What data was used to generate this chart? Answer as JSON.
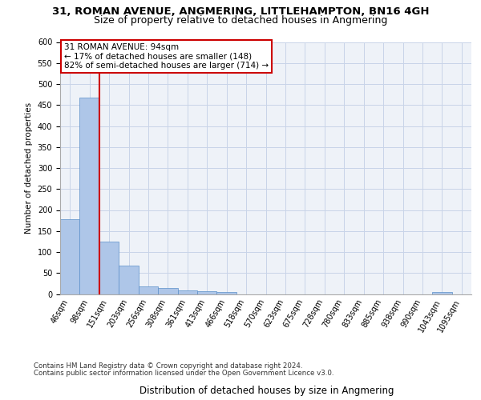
{
  "title_line1": "31, ROMAN AVENUE, ANGMERING, LITTLEHAMPTON, BN16 4GH",
  "title_line2": "Size of property relative to detached houses in Angmering",
  "xlabel": "Distribution of detached houses by size in Angmering",
  "ylabel": "Number of detached properties",
  "annotation_line1": "31 ROMAN AVENUE: 94sqm",
  "annotation_line2": "← 17% of detached houses are smaller (148)",
  "annotation_line3": "82% of semi-detached houses are larger (714) →",
  "footer_line1": "Contains HM Land Registry data © Crown copyright and database right 2024.",
  "footer_line2": "Contains public sector information licensed under the Open Government Licence v3.0.",
  "bar_labels": [
    "46sqm",
    "98sqm",
    "151sqm",
    "203sqm",
    "256sqm",
    "308sqm",
    "361sqm",
    "413sqm",
    "466sqm",
    "518sqm",
    "570sqm",
    "623sqm",
    "675sqm",
    "728sqm",
    "780sqm",
    "833sqm",
    "885sqm",
    "938sqm",
    "990sqm",
    "1043sqm",
    "1095sqm"
  ],
  "bar_values": [
    178,
    468,
    125,
    68,
    18,
    15,
    8,
    6,
    4,
    0,
    0,
    0,
    0,
    0,
    0,
    0,
    0,
    0,
    0,
    5,
    0
  ],
  "bar_color": "#aec6e8",
  "bar_edge_color": "#5b8fc9",
  "vline_x": 1.5,
  "vline_color": "#cc0000",
  "annotation_box_color": "#cc0000",
  "ylim": [
    0,
    600
  ],
  "yticks": [
    0,
    50,
    100,
    150,
    200,
    250,
    300,
    350,
    400,
    450,
    500,
    550,
    600
  ],
  "grid_color": "#c8d4e8",
  "background_color": "#eef2f8",
  "fig_bg": "#ffffff",
  "title_fontsize": 9.5,
  "subtitle_fontsize": 9.0,
  "ylabel_fontsize": 7.5,
  "xlabel_fontsize": 8.5,
  "tick_fontsize": 7.0,
  "footer_fontsize": 6.2,
  "annotation_fontsize": 7.5
}
